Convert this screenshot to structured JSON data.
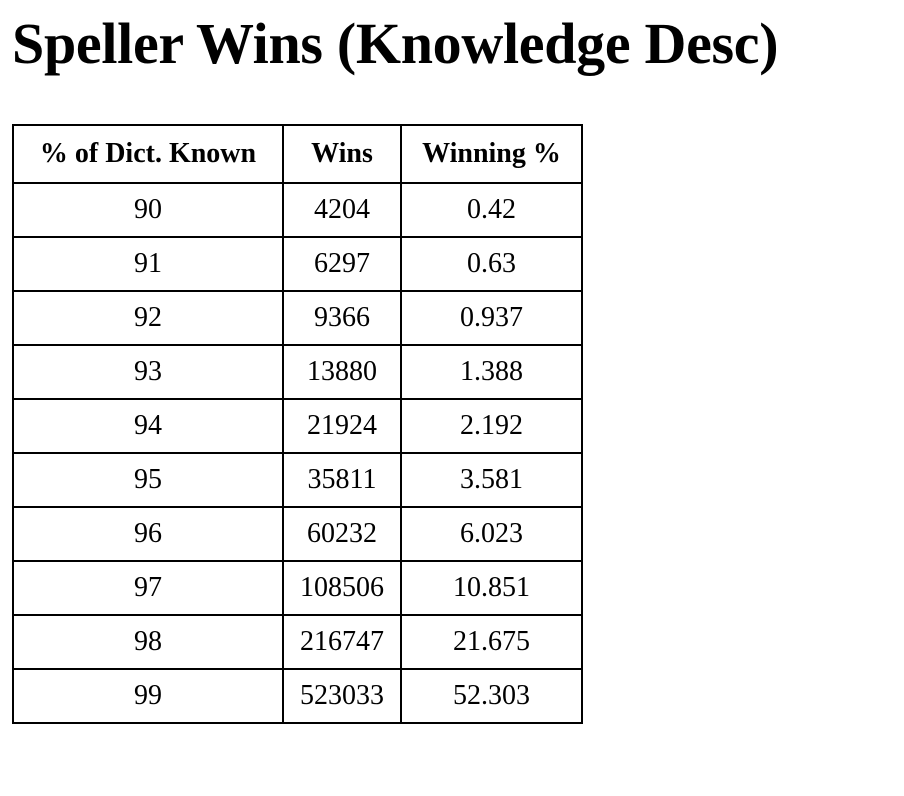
{
  "page": {
    "title": "Speller Wins (Knowledge Desc)"
  },
  "table": {
    "headers": [
      "% of Dict. Known",
      "Wins",
      "Winning %"
    ],
    "rows": [
      [
        "90",
        "4204",
        "0.42"
      ],
      [
        "91",
        "6297",
        "0.63"
      ],
      [
        "92",
        "9366",
        "0.937"
      ],
      [
        "93",
        "13880",
        "1.388"
      ],
      [
        "94",
        "21924",
        "2.192"
      ],
      [
        "95",
        "35811",
        "3.581"
      ],
      [
        "96",
        "60232",
        "6.023"
      ],
      [
        "97",
        "108506",
        "10.851"
      ],
      [
        "98",
        "216747",
        "21.675"
      ],
      [
        "99",
        "523033",
        "52.303"
      ]
    ]
  }
}
